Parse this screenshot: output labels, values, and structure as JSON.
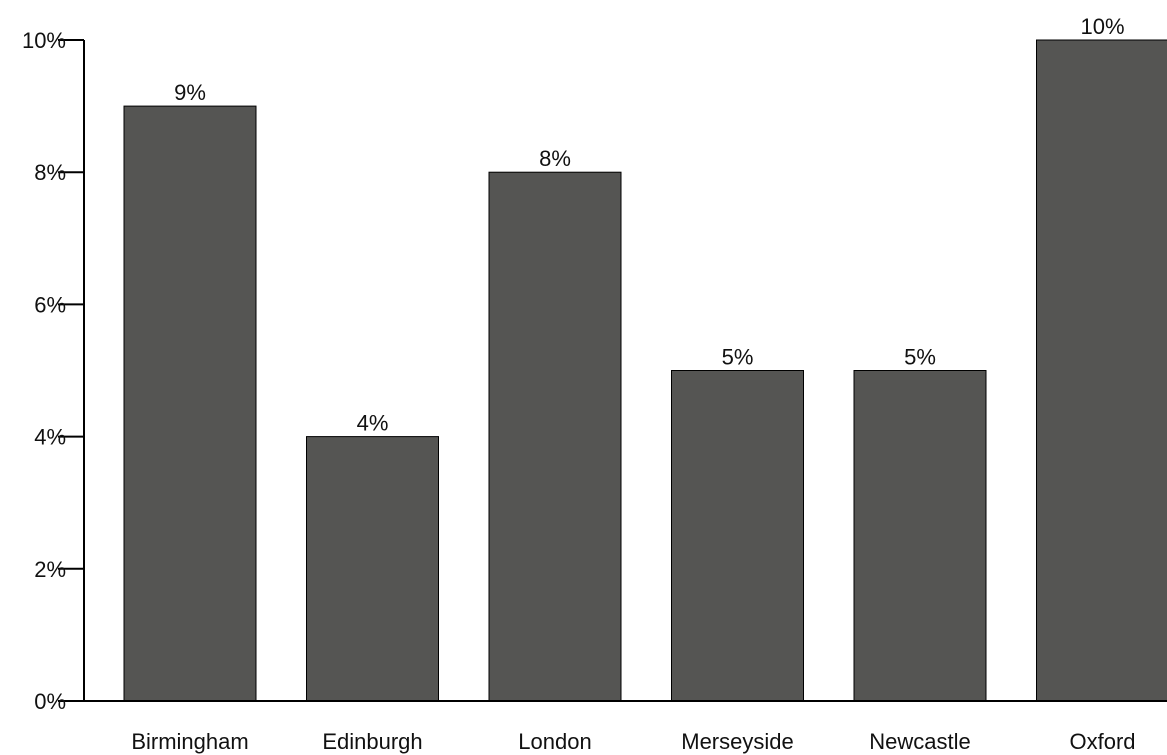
{
  "chart_data": {
    "type": "bar",
    "title": "",
    "xlabel": "",
    "ylabel": "",
    "categories": [
      "Birmingham",
      "Edinburgh",
      "London",
      "Merseyside",
      "Newcastle",
      "Oxford"
    ],
    "values": [
      9,
      4,
      8,
      5,
      5,
      10
    ],
    "value_labels": [
      "9%",
      "4%",
      "8%",
      "5%",
      "5%",
      "10%"
    ],
    "ylim": [
      0,
      10
    ],
    "yticks": [
      0,
      2,
      4,
      6,
      8,
      10
    ],
    "ytick_labels": [
      "0%",
      "2%",
      "4%",
      "6%",
      "8%",
      "10%"
    ],
    "grid": false,
    "legend": "none",
    "bar_color": "#555553"
  }
}
